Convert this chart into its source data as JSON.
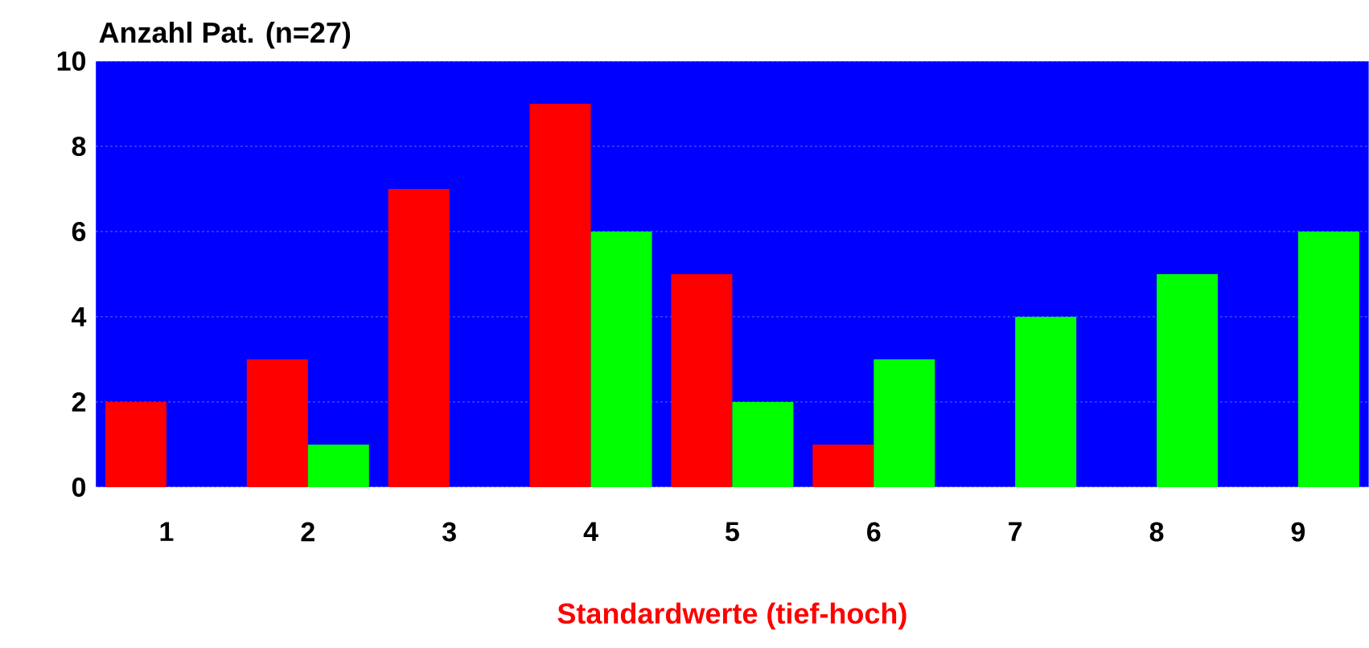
{
  "chart_data": {
    "type": "bar",
    "ylabel": "Anzahl Pat. (n=27)",
    "xlabel": "Standardwerte (tief-hoch)",
    "categories": [
      "1",
      "2",
      "3",
      "4",
      "5",
      "6",
      "7",
      "8",
      "9"
    ],
    "series": [
      {
        "color": "#ff0000",
        "values": [
          2,
          3,
          7,
          9,
          5,
          1,
          0,
          0,
          0
        ]
      },
      {
        "color": "#00ff00",
        "values": [
          0,
          1,
          0,
          6,
          2,
          3,
          4,
          5,
          6
        ]
      }
    ],
    "ylim": [
      0,
      10
    ],
    "yticks": [
      0,
      2,
      4,
      6,
      8,
      10
    ],
    "grid": "y"
  }
}
